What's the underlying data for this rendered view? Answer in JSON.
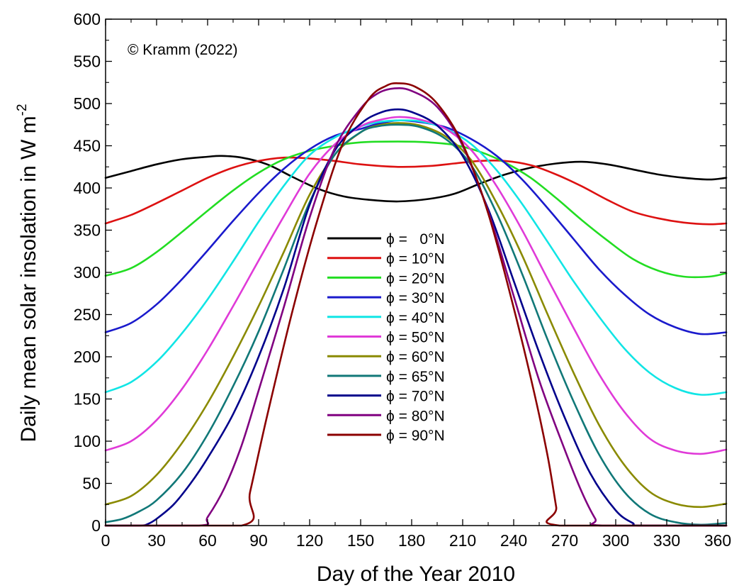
{
  "chart_data": {
    "type": "line",
    "annotation": "© Kramm (2022)",
    "xlabel": "Day of the Year 2010",
    "ylabel": "Daily mean solar insolation in W m",
    "ylabel_superscript": "-2",
    "xlim": [
      0,
      365
    ],
    "ylim": [
      0,
      600
    ],
    "xticks": [
      0,
      30,
      60,
      90,
      120,
      150,
      180,
      210,
      240,
      270,
      300,
      330,
      360
    ],
    "yticks": [
      0,
      50,
      100,
      150,
      200,
      250,
      300,
      350,
      400,
      450,
      500,
      550,
      600
    ],
    "grid": false,
    "legend_position": "center",
    "series": [
      {
        "name": "ϕ =   0°N",
        "color": "#000000",
        "points": [
          [
            0,
            412
          ],
          [
            15,
            420
          ],
          [
            30,
            428
          ],
          [
            45,
            434
          ],
          [
            60,
            437
          ],
          [
            68,
            438
          ],
          [
            80,
            436
          ],
          [
            95,
            428
          ],
          [
            110,
            413
          ],
          [
            125,
            399
          ],
          [
            140,
            390
          ],
          [
            155,
            386
          ],
          [
            172,
            384
          ],
          [
            190,
            387
          ],
          [
            205,
            393
          ],
          [
            220,
            405
          ],
          [
            235,
            416
          ],
          [
            250,
            424
          ],
          [
            265,
            429
          ],
          [
            280,
            431
          ],
          [
            295,
            428
          ],
          [
            310,
            422
          ],
          [
            325,
            416
          ],
          [
            340,
            412
          ],
          [
            355,
            410
          ],
          [
            365,
            412
          ]
        ]
      },
      {
        "name": "ϕ = 10°N",
        "color": "#dd1111",
        "points": [
          [
            0,
            358
          ],
          [
            15,
            368
          ],
          [
            30,
            382
          ],
          [
            45,
            397
          ],
          [
            60,
            412
          ],
          [
            75,
            424
          ],
          [
            90,
            432
          ],
          [
            105,
            436
          ],
          [
            120,
            435
          ],
          [
            135,
            432
          ],
          [
            150,
            428
          ],
          [
            172,
            425
          ],
          [
            190,
            426
          ],
          [
            205,
            429
          ],
          [
            220,
            432
          ],
          [
            235,
            432
          ],
          [
            250,
            427
          ],
          [
            265,
            416
          ],
          [
            280,
            402
          ],
          [
            295,
            386
          ],
          [
            310,
            372
          ],
          [
            325,
            364
          ],
          [
            340,
            359
          ],
          [
            355,
            357
          ],
          [
            365,
            358
          ]
        ]
      },
      {
        "name": "ϕ = 20°N",
        "color": "#22dd22",
        "points": [
          [
            0,
            296
          ],
          [
            15,
            305
          ],
          [
            30,
            324
          ],
          [
            45,
            348
          ],
          [
            60,
            373
          ],
          [
            75,
            397
          ],
          [
            90,
            418
          ],
          [
            105,
            434
          ],
          [
            120,
            444
          ],
          [
            135,
            450
          ],
          [
            150,
            454
          ],
          [
            172,
            455
          ],
          [
            190,
            454
          ],
          [
            205,
            451
          ],
          [
            220,
            443
          ],
          [
            235,
            430
          ],
          [
            250,
            412
          ],
          [
            265,
            388
          ],
          [
            280,
            362
          ],
          [
            295,
            338
          ],
          [
            310,
            316
          ],
          [
            325,
            302
          ],
          [
            340,
            295
          ],
          [
            355,
            295
          ],
          [
            365,
            299
          ]
        ]
      },
      {
        "name": "ϕ = 30°N",
        "color": "#1a1acc",
        "points": [
          [
            0,
            229
          ],
          [
            15,
            240
          ],
          [
            30,
            262
          ],
          [
            45,
            292
          ],
          [
            60,
            326
          ],
          [
            75,
            361
          ],
          [
            90,
            394
          ],
          [
            105,
            423
          ],
          [
            120,
            446
          ],
          [
            135,
            462
          ],
          [
            150,
            470
          ],
          [
            160,
            476
          ],
          [
            172,
            480
          ],
          [
            185,
            478
          ],
          [
            200,
            472
          ],
          [
            215,
            458
          ],
          [
            230,
            438
          ],
          [
            245,
            410
          ],
          [
            260,
            376
          ],
          [
            275,
            340
          ],
          [
            290,
            304
          ],
          [
            305,
            274
          ],
          [
            320,
            250
          ],
          [
            335,
            235
          ],
          [
            350,
            227
          ],
          [
            365,
            229
          ]
        ]
      },
      {
        "name": "ϕ = 40°N",
        "color": "#11e5e5",
        "points": [
          [
            0,
            158
          ],
          [
            15,
            170
          ],
          [
            30,
            194
          ],
          [
            45,
            228
          ],
          [
            60,
            268
          ],
          [
            75,
            313
          ],
          [
            90,
            360
          ],
          [
            105,
            403
          ],
          [
            120,
            439
          ],
          [
            135,
            460
          ],
          [
            150,
            473
          ],
          [
            160,
            478
          ],
          [
            172,
            480
          ],
          [
            185,
            479
          ],
          [
            200,
            470
          ],
          [
            215,
            452
          ],
          [
            230,
            421
          ],
          [
            245,
            381
          ],
          [
            260,
            336
          ],
          [
            275,
            290
          ],
          [
            290,
            248
          ],
          [
            305,
            210
          ],
          [
            320,
            181
          ],
          [
            335,
            163
          ],
          [
            350,
            155
          ],
          [
            365,
            158
          ]
        ]
      },
      {
        "name": "ϕ = 50°N",
        "color": "#e03ad8",
        "points": [
          [
            0,
            89
          ],
          [
            15,
            100
          ],
          [
            30,
            125
          ],
          [
            45,
            162
          ],
          [
            60,
            208
          ],
          [
            75,
            260
          ],
          [
            90,
            314
          ],
          [
            105,
            367
          ],
          [
            120,
            417
          ],
          [
            135,
            452
          ],
          [
            150,
            473
          ],
          [
            160,
            480
          ],
          [
            172,
            484
          ],
          [
            185,
            481
          ],
          [
            200,
            470
          ],
          [
            215,
            445
          ],
          [
            230,
            402
          ],
          [
            245,
            350
          ],
          [
            260,
            292
          ],
          [
            275,
            235
          ],
          [
            290,
            180
          ],
          [
            305,
            135
          ],
          [
            320,
            103
          ],
          [
            335,
            89
          ],
          [
            350,
            85
          ],
          [
            365,
            90
          ]
        ]
      },
      {
        "name": "ϕ = 60°N",
        "color": "#8a8a00",
        "points": [
          [
            0,
            25
          ],
          [
            15,
            35
          ],
          [
            30,
            60
          ],
          [
            45,
            98
          ],
          [
            60,
            145
          ],
          [
            75,
            200
          ],
          [
            90,
            260
          ],
          [
            105,
            325
          ],
          [
            120,
            392
          ],
          [
            135,
            440
          ],
          [
            150,
            466
          ],
          [
            160,
            474
          ],
          [
            172,
            477
          ],
          [
            185,
            474
          ],
          [
            200,
            461
          ],
          [
            215,
            433
          ],
          [
            230,
            382
          ],
          [
            245,
            320
          ],
          [
            260,
            250
          ],
          [
            275,
            182
          ],
          [
            290,
            120
          ],
          [
            305,
            72
          ],
          [
            320,
            40
          ],
          [
            335,
            26
          ],
          [
            350,
            22
          ],
          [
            365,
            26
          ]
        ]
      },
      {
        "name": "ϕ = 65°N",
        "color": "#117878",
        "points": [
          [
            0,
            4
          ],
          [
            10,
            8
          ],
          [
            20,
            17
          ],
          [
            30,
            30
          ],
          [
            45,
            62
          ],
          [
            60,
            108
          ],
          [
            75,
            165
          ],
          [
            90,
            230
          ],
          [
            105,
            305
          ],
          [
            120,
            383
          ],
          [
            135,
            440
          ],
          [
            150,
            466
          ],
          [
            160,
            473
          ],
          [
            172,
            475
          ],
          [
            185,
            472
          ],
          [
            200,
            458
          ],
          [
            215,
            427
          ],
          [
            230,
            370
          ],
          [
            245,
            298
          ],
          [
            260,
            220
          ],
          [
            275,
            148
          ],
          [
            290,
            85
          ],
          [
            305,
            40
          ],
          [
            320,
            14
          ],
          [
            335,
            4
          ],
          [
            350,
            1
          ],
          [
            365,
            3
          ]
        ]
      },
      {
        "name": "ϕ = 70°N",
        "color": "#00008b",
        "points": [
          [
            0,
            0
          ],
          [
            20,
            0
          ],
          [
            25,
            2
          ],
          [
            30,
            8
          ],
          [
            40,
            25
          ],
          [
            50,
            50
          ],
          [
            60,
            80
          ],
          [
            75,
            132
          ],
          [
            90,
            200
          ],
          [
            105,
            282
          ],
          [
            120,
            380
          ],
          [
            135,
            445
          ],
          [
            150,
            476
          ],
          [
            160,
            488
          ],
          [
            170,
            493
          ],
          [
            180,
            490
          ],
          [
            195,
            474
          ],
          [
            210,
            438
          ],
          [
            225,
            375
          ],
          [
            240,
            290
          ],
          [
            255,
            205
          ],
          [
            270,
            128
          ],
          [
            285,
            62
          ],
          [
            300,
            18
          ],
          [
            310,
            3
          ],
          [
            315,
            0
          ],
          [
            365,
            0
          ]
        ]
      },
      {
        "name": "ϕ = 80°N",
        "color": "#800080",
        "points": [
          [
            0,
            0
          ],
          [
            55,
            0
          ],
          [
            60,
            10
          ],
          [
            70,
            45
          ],
          [
            80,
            95
          ],
          [
            90,
            160
          ],
          [
            105,
            260
          ],
          [
            120,
            365
          ],
          [
            135,
            448
          ],
          [
            150,
            494
          ],
          [
            160,
            512
          ],
          [
            170,
            518
          ],
          [
            180,
            515
          ],
          [
            195,
            496
          ],
          [
            210,
            450
          ],
          [
            225,
            372
          ],
          [
            240,
            272
          ],
          [
            255,
            172
          ],
          [
            270,
            90
          ],
          [
            280,
            40
          ],
          [
            288,
            8
          ],
          [
            292,
            0
          ],
          [
            365,
            0
          ]
        ]
      },
      {
        "name": "ϕ = 90°N",
        "color": "#8b0000",
        "points": [
          [
            0,
            0
          ],
          [
            80,
            0
          ],
          [
            85,
            40
          ],
          [
            95,
            130
          ],
          [
            110,
            255
          ],
          [
            125,
            365
          ],
          [
            140,
            455
          ],
          [
            155,
            506
          ],
          [
            165,
            521
          ],
          [
            172,
            524
          ],
          [
            182,
            520
          ],
          [
            195,
            500
          ],
          [
            210,
            452
          ],
          [
            225,
            370
          ],
          [
            240,
            258
          ],
          [
            252,
            158
          ],
          [
            260,
            82
          ],
          [
            265,
            22
          ],
          [
            267,
            0
          ],
          [
            365,
            0
          ]
        ]
      }
    ]
  }
}
